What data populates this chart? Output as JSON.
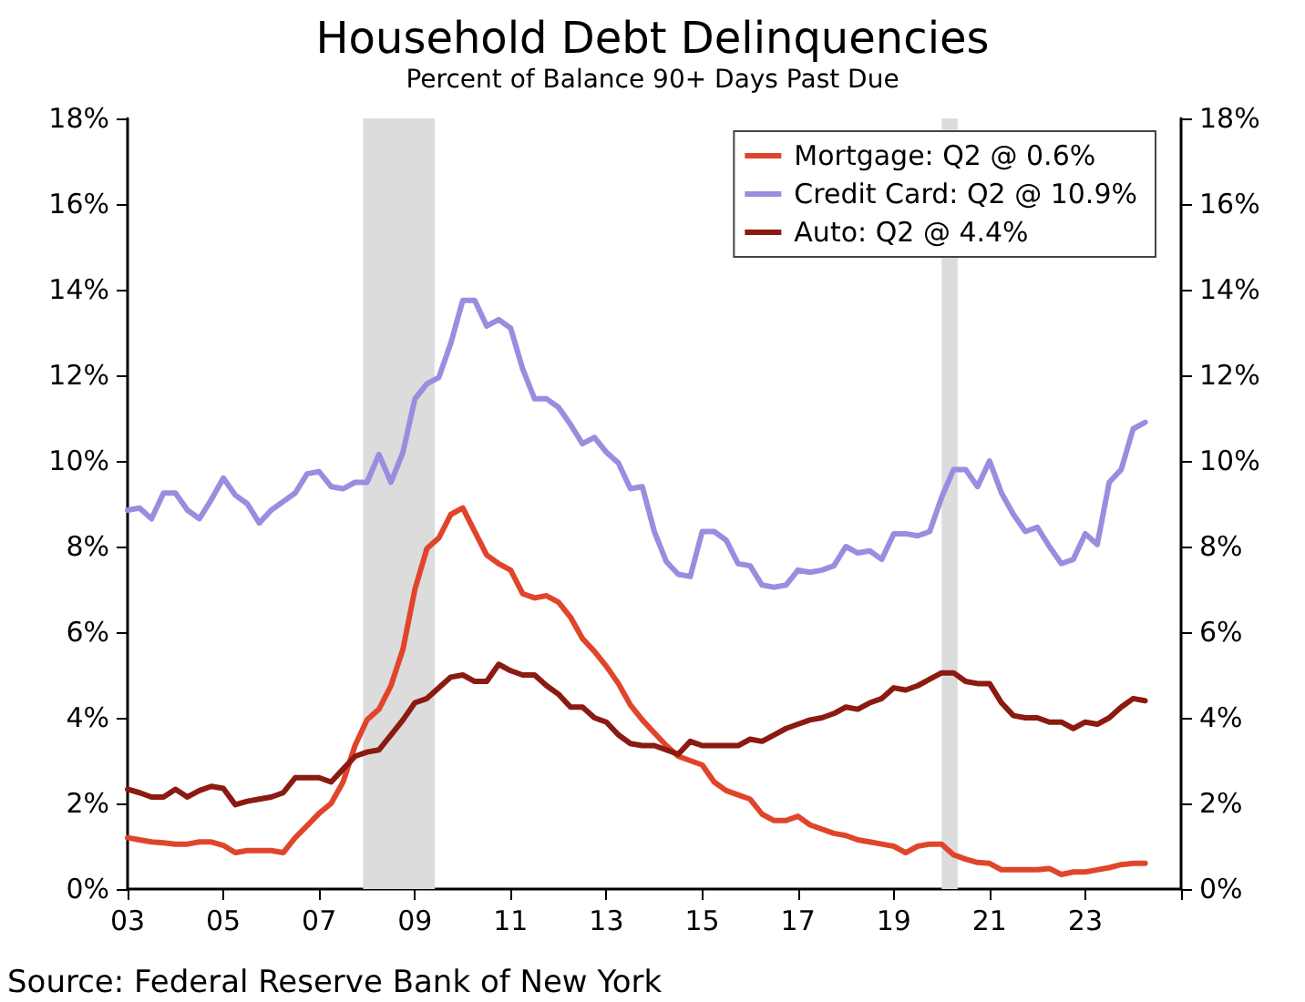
{
  "chart_data": {
    "type": "line",
    "title": "Household Debt Delinquencies",
    "subtitle": "Percent of Balance 90+ Days Past Due",
    "annotations": [
      "Source: Federal Reserve Bank of New York"
    ],
    "x": [
      2003,
      2003.25,
      2003.5,
      2003.75,
      2004,
      2004.25,
      2004.5,
      2004.75,
      2005,
      2005.25,
      2005.5,
      2005.75,
      2006,
      2006.25,
      2006.5,
      2006.75,
      2007,
      2007.25,
      2007.5,
      2007.75,
      2008,
      2008.25,
      2008.5,
      2008.75,
      2009,
      2009.25,
      2009.5,
      2009.75,
      2010,
      2010.25,
      2010.5,
      2010.75,
      2011,
      2011.25,
      2011.5,
      2011.75,
      2012,
      2012.25,
      2012.5,
      2012.75,
      2013,
      2013.25,
      2013.5,
      2013.75,
      2014,
      2014.25,
      2014.5,
      2014.75,
      2015,
      2015.25,
      2015.5,
      2015.75,
      2016,
      2016.25,
      2016.5,
      2016.75,
      2017,
      2017.25,
      2017.5,
      2017.75,
      2018,
      2018.25,
      2018.5,
      2018.75,
      2019,
      2019.25,
      2019.5,
      2019.75,
      2020,
      2020.25,
      2020.5,
      2020.75,
      2021,
      2021.25,
      2021.5,
      2021.75,
      2022,
      2022.25,
      2022.5,
      2022.75,
      2023,
      2023.25,
      2023.5,
      2023.75,
      2024,
      2024.25
    ],
    "series": [
      {
        "name": "Mortgage: Q2 @ 0.6%",
        "color": "#e0452c",
        "values": [
          1.2,
          1.15,
          1.1,
          1.08,
          1.05,
          1.05,
          1.1,
          1.1,
          1.02,
          0.85,
          0.9,
          0.9,
          0.9,
          0.85,
          1.2,
          1.48,
          1.77,
          2.0,
          2.5,
          3.35,
          3.95,
          4.2,
          4.75,
          5.6,
          7.0,
          7.95,
          8.2,
          8.75,
          8.9,
          8.35,
          7.8,
          7.6,
          7.45,
          6.9,
          6.8,
          6.85,
          6.7,
          6.35,
          5.85,
          5.55,
          5.2,
          4.8,
          4.3,
          3.95,
          3.65,
          3.35,
          3.1,
          3.0,
          2.9,
          2.5,
          2.3,
          2.2,
          2.1,
          1.75,
          1.6,
          1.6,
          1.7,
          1.5,
          1.4,
          1.3,
          1.25,
          1.15,
          1.1,
          1.05,
          1.0,
          0.85,
          1.0,
          1.05,
          1.05,
          0.8,
          0.7,
          0.62,
          0.6,
          0.45,
          0.45,
          0.45,
          0.45,
          0.48,
          0.34,
          0.4,
          0.4,
          0.45,
          0.5,
          0.57,
          0.6,
          0.6
        ]
      },
      {
        "name": "Credit Card: Q2 @ 10.9%",
        "color": "#9a8de0",
        "values": [
          8.85,
          8.9,
          8.65,
          9.25,
          9.25,
          8.85,
          8.65,
          9.1,
          9.6,
          9.2,
          9.0,
          8.55,
          8.85,
          9.05,
          9.25,
          9.7,
          9.75,
          9.4,
          9.35,
          9.5,
          9.5,
          10.15,
          9.5,
          10.2,
          11.45,
          11.8,
          11.95,
          12.75,
          13.75,
          13.75,
          13.15,
          13.3,
          13.1,
          12.15,
          11.45,
          11.45,
          11.25,
          10.85,
          10.4,
          10.55,
          10.2,
          9.95,
          9.35,
          9.4,
          8.35,
          7.65,
          7.35,
          7.3,
          8.35,
          8.35,
          8.15,
          7.6,
          7.55,
          7.1,
          7.05,
          7.1,
          7.45,
          7.4,
          7.45,
          7.55,
          8.0,
          7.85,
          7.9,
          7.7,
          8.3,
          8.3,
          8.25,
          8.35,
          9.15,
          9.8,
          9.8,
          9.4,
          10.0,
          9.25,
          8.75,
          8.35,
          8.45,
          8.0,
          7.6,
          7.7,
          8.3,
          8.05,
          9.5,
          9.8,
          10.75,
          10.9
        ]
      },
      {
        "name": "Auto: Q2 @ 4.4%",
        "color": "#8b1a10",
        "values": [
          2.33,
          2.25,
          2.15,
          2.15,
          2.33,
          2.15,
          2.3,
          2.4,
          2.35,
          1.97,
          2.05,
          2.1,
          2.15,
          2.25,
          2.6,
          2.6,
          2.6,
          2.5,
          2.8,
          3.1,
          3.2,
          3.25,
          3.6,
          3.95,
          4.35,
          4.45,
          4.7,
          4.95,
          5.0,
          4.85,
          4.85,
          5.25,
          5.1,
          5.0,
          5.0,
          4.75,
          4.55,
          4.25,
          4.25,
          4.0,
          3.9,
          3.6,
          3.4,
          3.35,
          3.35,
          3.25,
          3.15,
          3.45,
          3.35,
          3.35,
          3.35,
          3.35,
          3.5,
          3.45,
          3.6,
          3.75,
          3.85,
          3.95,
          4.0,
          4.1,
          4.25,
          4.2,
          4.35,
          4.45,
          4.7,
          4.65,
          4.75,
          4.9,
          5.05,
          5.05,
          4.85,
          4.8,
          4.8,
          4.35,
          4.05,
          4.0,
          4.0,
          3.9,
          3.9,
          3.75,
          3.9,
          3.85,
          4.0,
          4.25,
          4.45,
          4.4
        ]
      }
    ],
    "xlim": [
      2003,
      2025
    ],
    "xticks": [
      {
        "value": 2003,
        "label": "03"
      },
      {
        "value": 2005,
        "label": "05"
      },
      {
        "value": 2007,
        "label": "07"
      },
      {
        "value": 2009,
        "label": "09"
      },
      {
        "value": 2011,
        "label": "11"
      },
      {
        "value": 2013,
        "label": "13"
      },
      {
        "value": 2015,
        "label": "15"
      },
      {
        "value": 2017,
        "label": "17"
      },
      {
        "value": 2019,
        "label": "19"
      },
      {
        "value": 2021,
        "label": "21"
      },
      {
        "value": 2023,
        "label": "23"
      },
      {
        "value": 2025,
        "label": null
      }
    ],
    "ylim": [
      0,
      18
    ],
    "yticks": [
      {
        "value": 0,
        "label": "0%"
      },
      {
        "value": 2,
        "label": "2%"
      },
      {
        "value": 4,
        "label": "4%"
      },
      {
        "value": 6,
        "label": "6%"
      },
      {
        "value": 8,
        "label": "8%"
      },
      {
        "value": 10,
        "label": "10%"
      },
      {
        "value": 12,
        "label": "12%"
      },
      {
        "value": 14,
        "label": "14%"
      },
      {
        "value": 16,
        "label": "16%"
      },
      {
        "value": 18,
        "label": "18%"
      }
    ],
    "y2lim": [
      0,
      18
    ],
    "y2ticks": [
      {
        "value": 0,
        "label": "0%"
      },
      {
        "value": 2,
        "label": "2%"
      },
      {
        "value": 4,
        "label": "4%"
      },
      {
        "value": 6,
        "label": "6%"
      },
      {
        "value": 8,
        "label": "8%"
      },
      {
        "value": 10,
        "label": "10%"
      },
      {
        "value": 12,
        "label": "12%"
      },
      {
        "value": 14,
        "label": "14%"
      },
      {
        "value": 16,
        "label": "16%"
      },
      {
        "value": 18,
        "label": "18%"
      }
    ],
    "bands": [
      {
        "axis": "x",
        "from": 2007.917,
        "to": 2009.417,
        "color": "#dcdcdc"
      },
      {
        "axis": "x",
        "from": 2020,
        "to": 2020.333,
        "color": "#dcdcdc"
      }
    ],
    "grid": false,
    "legend": "top right",
    "marker": "none",
    "line_style": "solid"
  }
}
